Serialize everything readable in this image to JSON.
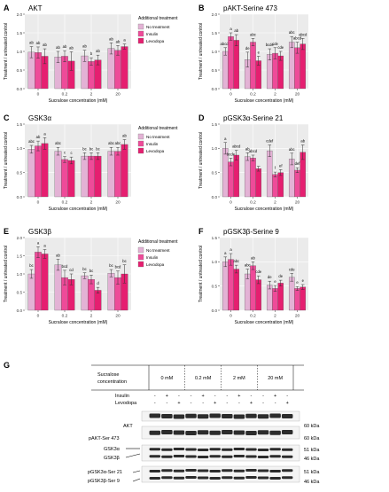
{
  "chart_data": [
    {
      "type": "bar",
      "panel_letter": "A",
      "title": "AKT",
      "xlabel": "Sucralose concentration (mM)",
      "ylabel": "Treatment / untreated control",
      "ylim": [
        0,
        2.0
      ],
      "yticks": [
        "0.0",
        "0.5",
        "1.0",
        "1.5",
        "2.0"
      ],
      "categories": [
        "0",
        "0.2",
        "2",
        "20"
      ],
      "legend_title": "Additional treatment",
      "series": [
        {
          "name": "No treatment",
          "values": [
            0.98,
            0.85,
            0.88,
            1.08
          ],
          "errors": [
            0.15,
            0.15,
            0.15,
            0.15
          ],
          "letters": [
            "ab",
            "ab",
            "ab",
            "ab"
          ]
        },
        {
          "name": "Insulin",
          "values": [
            0.97,
            0.87,
            0.73,
            1.03
          ],
          "errors": [
            0.15,
            0.15,
            0.1,
            0.13
          ],
          "letters": [
            "ab",
            "ab",
            "b",
            "ab"
          ]
        },
        {
          "name": "Levodopa",
          "values": [
            0.87,
            0.74,
            0.77,
            1.13
          ],
          "errors": [
            0.2,
            0.25,
            0.13,
            0.07
          ],
          "letters": [
            "ab",
            "ab",
            "ab",
            "a"
          ]
        }
      ]
    },
    {
      "type": "bar",
      "panel_letter": "B",
      "title": "pAKT-Serine 473",
      "xlabel": "Sucralose concentration (mM)",
      "ylabel": "Treatment / untreated control",
      "ylim": [
        0,
        2.0
      ],
      "yticks": [
        "0.0",
        "0.5",
        "1.0",
        "1.5",
        "2.0"
      ],
      "categories": [
        "0",
        "0.2",
        "2",
        "20"
      ],
      "series": [
        {
          "name": "No treatment",
          "values": [
            1.0,
            0.78,
            0.92,
            1.25
          ],
          "errors": [
            0.1,
            0.2,
            0.15,
            0.15
          ],
          "letters": [
            "abcde",
            "de",
            "bcde",
            "abc"
          ]
        },
        {
          "name": "Insulin",
          "values": [
            1.4,
            1.25,
            0.95,
            1.1
          ],
          "errors": [
            0.1,
            0.1,
            0.15,
            0.15
          ],
          "letters": [
            "a",
            "abc",
            "cde",
            "abcd"
          ]
        },
        {
          "name": "Levodopa",
          "values": [
            1.3,
            0.75,
            0.88,
            1.2
          ],
          "errors": [
            0.15,
            0.12,
            0.12,
            0.15
          ],
          "letters": [
            "ab",
            "e",
            "cde",
            "abcd"
          ]
        }
      ]
    },
    {
      "type": "bar",
      "panel_letter": "C",
      "title": "GSK3α",
      "xlabel": "Sucralose concentration (mM)",
      "ylabel": "Treatment / untreated control",
      "ylim": [
        0,
        1.5
      ],
      "yticks": [
        "0.0",
        "0.5",
        "1.0",
        "1.5"
      ],
      "categories": [
        "0",
        "0.2",
        "2",
        "20"
      ],
      "legend_title": "Additional treatment",
      "series": [
        {
          "name": "No treatment",
          "values": [
            0.98,
            0.94,
            0.84,
            0.94
          ],
          "errors": [
            0.08,
            0.08,
            0.07,
            0.08
          ],
          "letters": [
            "abc",
            "abc",
            "bc",
            "abc"
          ]
        },
        {
          "name": "Insulin",
          "values": [
            1.05,
            0.77,
            0.84,
            0.94
          ],
          "errors": [
            0.1,
            0.06,
            0.07,
            0.08
          ],
          "letters": [
            "ab",
            "c",
            "bc",
            "abc"
          ]
        },
        {
          "name": "Levodopa",
          "values": [
            1.1,
            0.75,
            0.84,
            1.08
          ],
          "errors": [
            0.12,
            0.07,
            0.07,
            0.1
          ],
          "letters": [
            "a",
            "c",
            "bc",
            "ab"
          ]
        }
      ]
    },
    {
      "type": "bar",
      "panel_letter": "D",
      "title": "pGSK3α-Serine 21",
      "xlabel": "Sucralose concentration (mM)",
      "ylabel": "Treatment / untreated control",
      "ylim": [
        0,
        1.5
      ],
      "yticks": [
        "0.0",
        "0.5",
        "1.0",
        "1.5"
      ],
      "categories": [
        "0",
        "0.2",
        "2",
        "20"
      ],
      "series": [
        {
          "name": "No treatment",
          "values": [
            1.0,
            0.83,
            0.95,
            0.78
          ],
          "errors": [
            0.12,
            0.08,
            0.12,
            0.12
          ],
          "letters": [
            "a",
            "ab",
            "cdef",
            "abc"
          ]
        },
        {
          "name": "Insulin",
          "values": [
            0.72,
            0.8,
            0.46,
            0.55
          ],
          "errors": [
            0.08,
            0.06,
            0.05,
            0.05
          ],
          "letters": [
            "bcde",
            "abcd",
            "f",
            "def"
          ]
        },
        {
          "name": "Levodopa",
          "values": [
            0.86,
            0.58,
            0.5,
            0.92
          ],
          "errors": [
            0.1,
            0.05,
            0.06,
            0.15
          ],
          "letters": [
            "abcd",
            "",
            "ef",
            "ab"
          ]
        }
      ]
    },
    {
      "type": "bar",
      "panel_letter": "E",
      "title": "GSK3β",
      "xlabel": "Sucralose concentration (mM)",
      "ylabel": "Treatment / untreated control",
      "ylim": [
        0,
        2.0
      ],
      "yticks": [
        "0.0",
        "0.5",
        "1.0",
        "1.5",
        "2.0"
      ],
      "categories": [
        "0",
        "0.2",
        "2",
        "20"
      ],
      "legend_title": "Additional treatment",
      "series": [
        {
          "name": "No treatment",
          "values": [
            1.0,
            1.25,
            0.95,
            1.02
          ],
          "errors": [
            0.12,
            0.15,
            0.08,
            0.1
          ],
          "letters": [
            "bc",
            "ab",
            "bc",
            "bc"
          ]
        },
        {
          "name": "Insulin",
          "values": [
            1.6,
            0.9,
            0.85,
            0.9
          ],
          "errors": [
            0.15,
            0.2,
            0.12,
            0.18
          ],
          "letters": [
            "a",
            "bcd",
            "bc",
            "bcd"
          ]
        },
        {
          "name": "Levodopa",
          "values": [
            1.55,
            0.85,
            0.55,
            1.0
          ],
          "errors": [
            0.12,
            0.15,
            0.08,
            0.25
          ],
          "letters": [
            "a",
            "cd",
            "d",
            "bc"
          ]
        }
      ]
    },
    {
      "type": "bar",
      "panel_letter": "F",
      "title": "pGSK3β-Serine 9",
      "xlabel": "Sucralose concentration (mM)",
      "ylabel": "Treatment / untreated control",
      "ylim": [
        0,
        1.5
      ],
      "yticks": [
        "0.0",
        "0.5",
        "1.0",
        "1.5"
      ],
      "categories": [
        "0",
        "0.2",
        "2",
        "20"
      ],
      "series": [
        {
          "name": "No treatment",
          "values": [
            1.0,
            0.75,
            0.52,
            0.68
          ],
          "errors": [
            0.1,
            0.1,
            0.08,
            0.08
          ],
          "letters": [
            "a",
            "abc",
            "de",
            "cde"
          ]
        },
        {
          "name": "Insulin",
          "values": [
            1.05,
            0.92,
            0.45,
            0.45
          ],
          "errors": [
            0.12,
            0.08,
            0.06,
            0.04
          ],
          "letters": [
            "a",
            "ab",
            "e",
            "e"
          ]
        },
        {
          "name": "Levodopa",
          "values": [
            0.85,
            0.63,
            0.56,
            0.48
          ],
          "errors": [
            0.08,
            0.08,
            0.06,
            0.05
          ],
          "letters": [
            "abc",
            "cde",
            "de",
            "e"
          ]
        }
      ]
    }
  ],
  "colors": {
    "No treatment": "#e3b2d5",
    "Insulin": "#ee4b99",
    "Levodopa": "#e51f70",
    "panel_background": "#ebebeb"
  },
  "blot": {
    "panel_letter": "G",
    "header_label": [
      "Sucralose",
      "concentration"
    ],
    "concentrations": [
      "0 mM",
      "0.2 mM",
      "2 mM",
      "20 mM"
    ],
    "row_labels": [
      "Insulin",
      "Levodopa"
    ],
    "insulin_signs": [
      "-",
      "+",
      "-",
      "-",
      "+",
      "-",
      "-",
      "+",
      "-",
      "-",
      "+",
      "-"
    ],
    "levodopa_signs": [
      "-",
      "-",
      "+",
      "-",
      "-",
      "+",
      "-",
      "-",
      "+",
      "-",
      "-",
      "+"
    ],
    "bands": [
      {
        "label": "AKT",
        "kda": "60 kDa"
      },
      {
        "label": "pAKT-Ser 473",
        "kda": "60 kDa"
      },
      {
        "label": "GSK3α",
        "kda": "51 kDa"
      },
      {
        "label": "GSK3β",
        "kda": "46 kDa"
      },
      {
        "label": "pGSK3α-Ser 21",
        "kda": "51 kDa"
      },
      {
        "label": "pGSK3β-Ser 9",
        "kda": "46 kDa"
      }
    ]
  }
}
